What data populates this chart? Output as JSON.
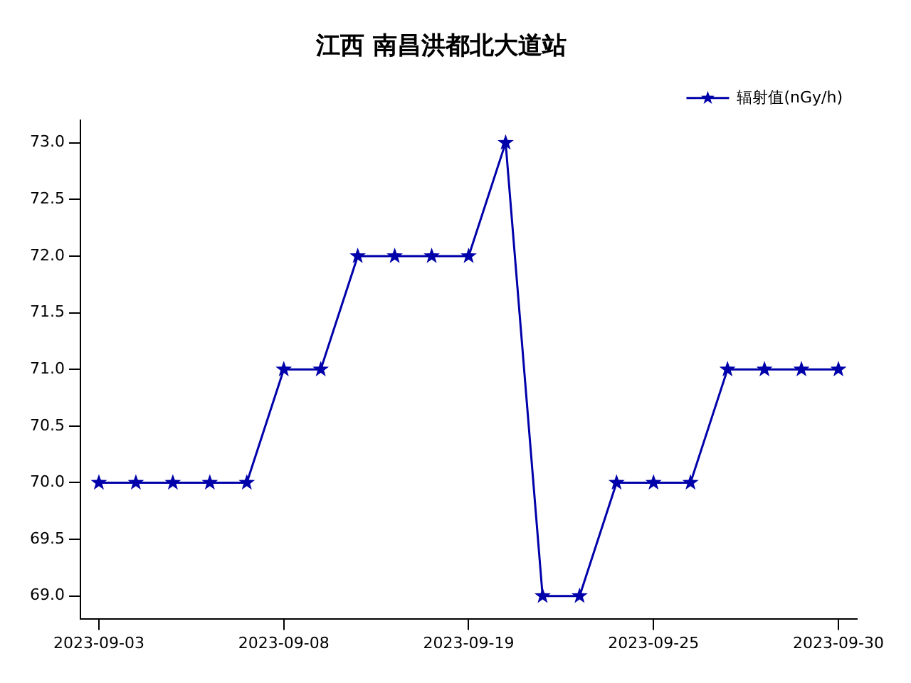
{
  "chart_data": {
    "type": "line",
    "title": "江西 南昌洪都北大道站",
    "categories": [
      "2023-09-03",
      null,
      null,
      null,
      null,
      "2023-09-08",
      null,
      null,
      null,
      null,
      "2023-09-19",
      null,
      null,
      null,
      null,
      "2023-09-25",
      null,
      null,
      null,
      null,
      "2023-09-30"
    ],
    "series": [
      {
        "name": "辐射值(nGy/h)",
        "color": "#0000aa",
        "values": [
          70,
          70,
          70,
          70,
          70,
          71,
          71,
          72,
          72,
          72,
          72,
          73,
          69,
          69,
          70,
          70,
          70,
          71,
          71,
          71,
          71
        ]
      }
    ],
    "ylim": [
      68.8,
      73.2
    ],
    "yticks": [
      {
        "value": 69,
        "label": "69.0"
      },
      {
        "value": 69.5,
        "label": "69.5"
      },
      {
        "value": 70,
        "label": "70.0"
      },
      {
        "value": 70.5,
        "label": "70.5"
      },
      {
        "value": 71,
        "label": "71.0"
      },
      {
        "value": 71.5,
        "label": "71.5"
      },
      {
        "value": 72,
        "label": "72.0"
      },
      {
        "value": 72.5,
        "label": "72.5"
      },
      {
        "value": 73,
        "label": "73.0"
      }
    ],
    "grid": false,
    "legend": "top right",
    "marker": "star",
    "line_style": "solid"
  }
}
